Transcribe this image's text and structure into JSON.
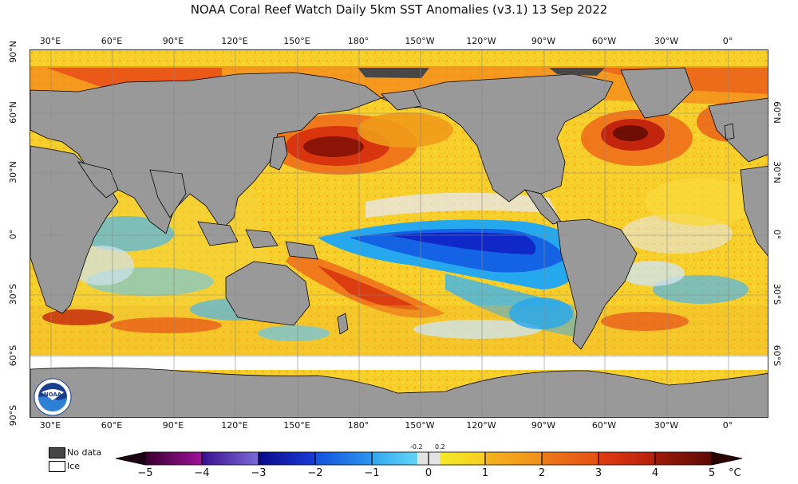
{
  "title": "NOAA Coral Reef Watch Daily 5km SST Anomalies  (v3.1)   13 Sep 2022",
  "lon_labels": [
    "30°E",
    "60°E",
    "90°E",
    "120°E",
    "150°E",
    "180°",
    "150°W",
    "120°W",
    "90°W",
    "60°W",
    "30°W",
    "0°"
  ],
  "lat_labels_left": [
    "90°N",
    "60°N",
    "30°N",
    "0°",
    "30°S",
    "60°S",
    "90°S"
  ],
  "lat_labels_right": [
    "60°N",
    "30°N",
    "0°",
    "30°S",
    "60°S"
  ],
  "legend": {
    "no_data": "No data",
    "ice": "Ice"
  },
  "colorbar": {
    "ticks": [
      "−5",
      "−4",
      "−3",
      "−2",
      "−1",
      "0",
      "1",
      "2",
      "3",
      "4",
      "5"
    ],
    "small_ticks": [
      "-0.2",
      "0.2"
    ],
    "unit": "°C",
    "colors": {
      "no_data": "#474747",
      "ice": "#ffffff",
      "land": "#999999"
    }
  },
  "logo": {
    "text": "NOAA"
  }
}
